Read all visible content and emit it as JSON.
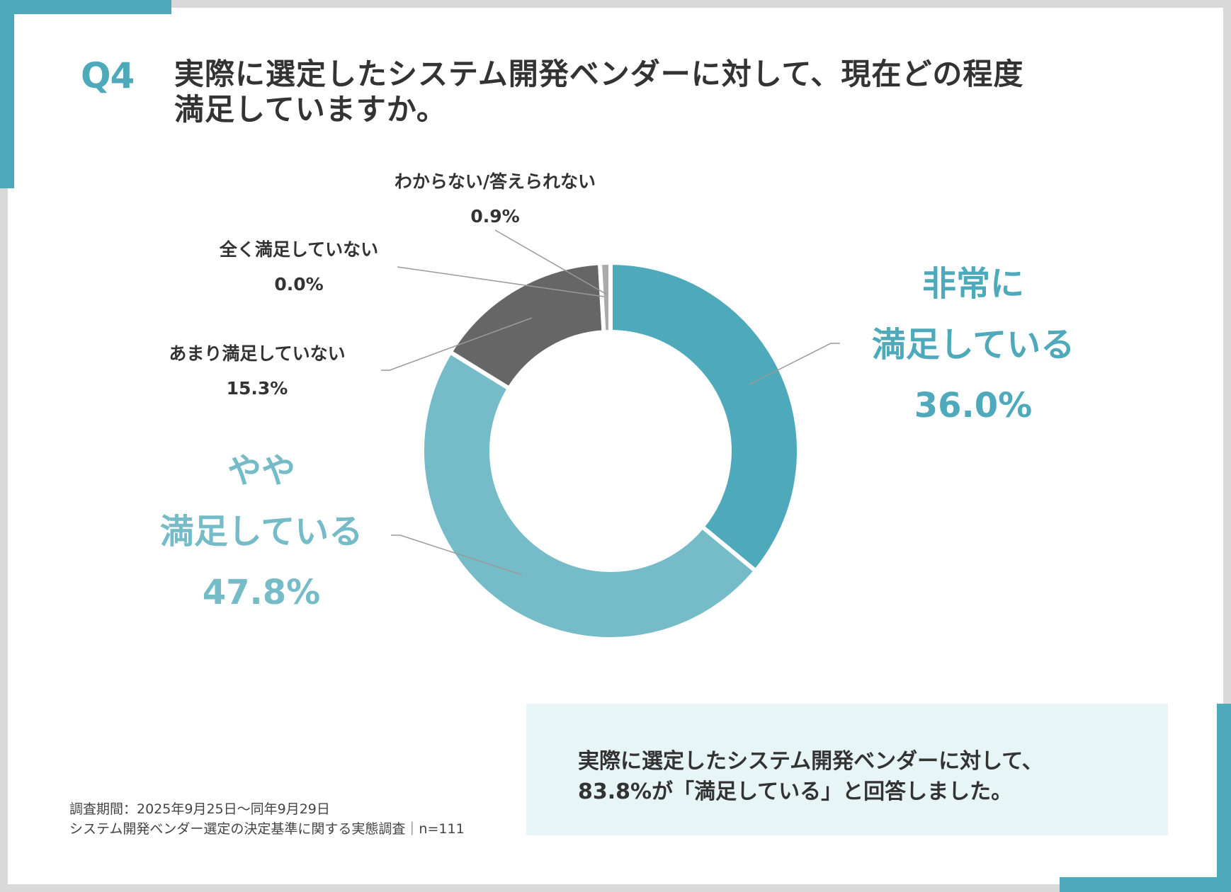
{
  "question_number": "Q4",
  "title_lines": [
    "実際に選定したシステム開発ベンダーに対して、現在どの程度",
    "満足していますか。"
  ],
  "chart_data": {
    "type": "pie",
    "variant": "donut",
    "title": "実際に選定したシステム開発ベンダーに対して、現在どの程度満足していますか。",
    "unit": "%",
    "categories": [
      "非常に満足している",
      "やや満足している",
      "あまり満足していない",
      "全く満足していない",
      "わからない/答えられない"
    ],
    "values": [
      36.0,
      47.8,
      15.3,
      0.0,
      0.9
    ],
    "labels": [
      {
        "lines": [
          "非常に",
          "満足している"
        ],
        "value": "36.0%"
      },
      {
        "lines": [
          "やや",
          "満足している"
        ],
        "value": "47.8%"
      },
      {
        "lines": [
          "あまり満足していない"
        ],
        "value": "15.3%"
      },
      {
        "lines": [
          "全く満足していない"
        ],
        "value": "0.0%"
      },
      {
        "lines": [
          "わからない/答えられない"
        ],
        "value": "0.9%"
      }
    ],
    "colors": [
      "#4eaaba",
      "#75bcc8",
      "#666666",
      "#555555",
      "#aaaaaa"
    ]
  },
  "summary_lines": [
    "実際に選定したシステム開発ベンダーに対して、",
    "83.8%が「満足している」と回答しました。"
  ],
  "footnote_lines": [
    "調査期間：2025年9月25日～同年9月29日",
    "システム開発ベンダー選定の決定基準に関する実態調査｜n=111"
  ]
}
